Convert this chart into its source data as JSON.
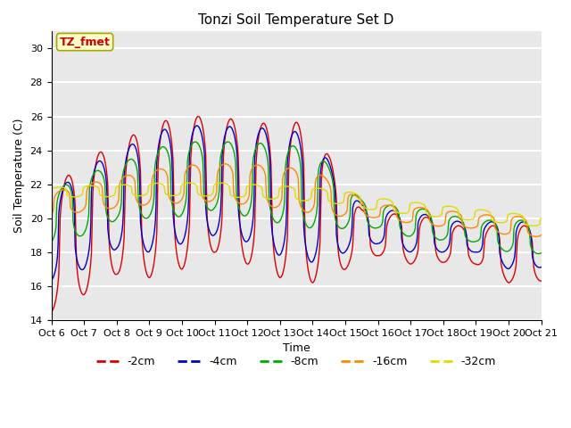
{
  "title": "Tonzi Soil Temperature Set D",
  "xlabel": "Time",
  "ylabel": "Soil Temperature (C)",
  "ylim": [
    14,
    31
  ],
  "xlim": [
    0,
    360
  ],
  "background_color": "#e8e8e8",
  "grid_color": "white",
  "annotation_text": "TZ_fmet",
  "annotation_color": "#cc0000",
  "annotation_bg": "#ffffcc",
  "annotation_border": "#aaa800",
  "series_colors": {
    "-2cm": "#dd0000",
    "-4cm": "#0000cc",
    "-8cm": "#00aa00",
    "-16cm": "#ff8800",
    "-32cm": "#dddd00"
  },
  "legend_labels": [
    "-2cm",
    "-4cm",
    "-8cm",
    "-16cm",
    "-32cm"
  ],
  "xtick_labels": [
    "Oct 6",
    "Oct 7",
    "Oct 8",
    "Oct 9",
    "Oct 10",
    "Oct 11",
    "Oct 12",
    "Oct 13",
    "Oct 14",
    "Oct 15",
    "Oct 16",
    "Oct 17",
    "Oct 18",
    "Oct 19",
    "Oct 20",
    "Oct 21"
  ],
  "xtick_positions": [
    0,
    24,
    48,
    72,
    96,
    120,
    144,
    168,
    192,
    216,
    240,
    264,
    288,
    312,
    336,
    360
  ]
}
